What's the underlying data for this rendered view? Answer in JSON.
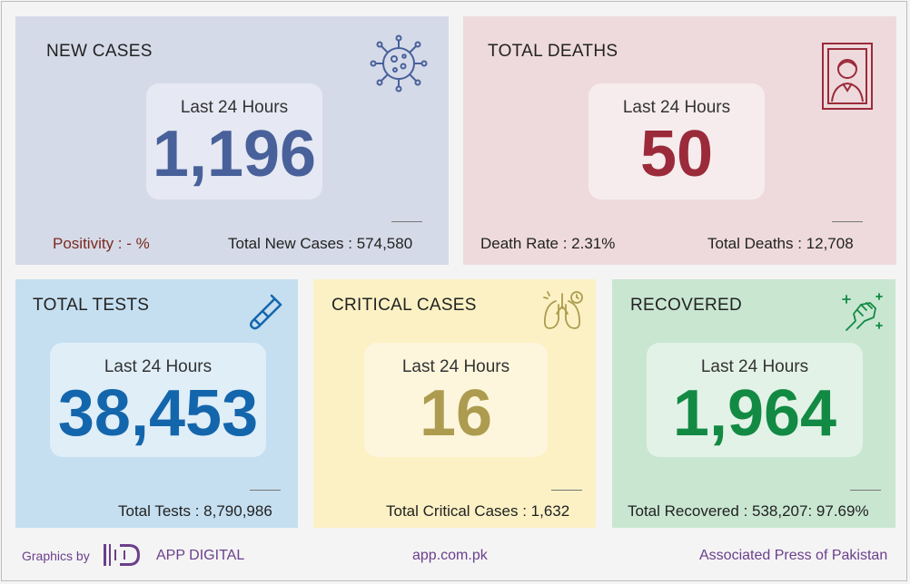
{
  "colors": {
    "new_bg": "#d5dae8",
    "new_num": "#48619a",
    "deaths_bg": "#eedadc",
    "deaths_num": "#9b2b3a",
    "tests_bg": "#c5dff0",
    "tests_num": "#1466ac",
    "critical_bg": "#fbf1c4",
    "critical_num": "#ad9c4f",
    "recovered_bg": "#c9e6d1",
    "recovered_num": "#128a43",
    "brand_purple": "#6b3f8c"
  },
  "new_cases": {
    "title": "NEW CASES",
    "period": "Last 24 Hours",
    "value": "1,196",
    "positivity": "Positivity : - %",
    "total": "Total New Cases : 574,580",
    "icon": "virus-icon"
  },
  "total_deaths": {
    "title": "TOTAL DEATHS",
    "period": "Last 24 Hours",
    "value": "50",
    "rate": "Death Rate : 2.31%",
    "total": "Total Deaths : 12,708",
    "icon": "portrait-frame-icon"
  },
  "total_tests": {
    "title": "TOTAL TESTS",
    "period": "Last 24 Hours",
    "value": "38,453",
    "total": "Total Tests : 8,790,986",
    "icon": "test-tube-icon"
  },
  "critical_cases": {
    "title": "CRITICAL CASES",
    "period": "Last 24 Hours",
    "value": "16",
    "total": "Total Critical Cases : 1,632",
    "icon": "lungs-icon"
  },
  "recovered": {
    "title": "RECOVERED",
    "period": "Last 24 Hours",
    "value": "1,964",
    "total": "Total Recovered : 538,207: 97.69%",
    "icon": "fist-sparkle-icon"
  },
  "footer": {
    "graphics_by": "Graphics by",
    "brand": "APP DIGITAL",
    "website": "app.com.pk",
    "agency": "Associated Press of Pakistan"
  }
}
